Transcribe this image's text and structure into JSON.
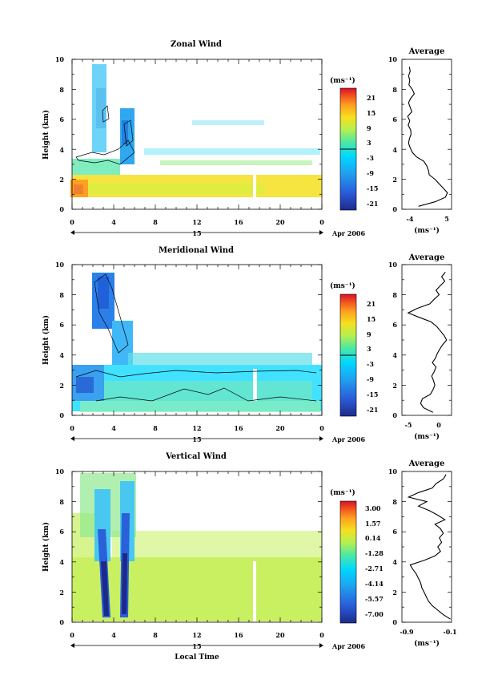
{
  "figure": {
    "date_label": "Apr 2006",
    "day_label": "15",
    "x_title": "Local Time",
    "unit_label": "(ms⁻¹)",
    "avg_title": "Average",
    "y_title": "Height (km)"
  },
  "chart_data": [
    {
      "type": "heatmap",
      "title": "Zonal Wind",
      "xlabel": "",
      "ylabel": "Height (km)",
      "x_ticks": [
        "0",
        "4",
        "8",
        "12",
        "16",
        "20",
        "0"
      ],
      "y_ticks": [
        "0",
        "2",
        "4",
        "6",
        "8",
        "10"
      ],
      "xlim": [
        0,
        24
      ],
      "ylim": [
        0,
        10
      ],
      "colorbar": {
        "label": "(ms⁻¹)",
        "ticks": [
          "21",
          "15",
          "9",
          "3",
          "-3",
          "-9",
          "-15",
          "-21"
        ],
        "range": [
          -24,
          24
        ],
        "zero_line": true
      },
      "colors": {
        "low": "#1d2a8a",
        "mid": "#00d8ff",
        "high": "#e31a1c"
      },
      "regions": [
        {
          "desc": "westerly low layer",
          "x": [
            0,
            24
          ],
          "y": [
            0.7,
            2.6
          ],
          "value": 10
        },
        {
          "desc": "easterly upper plume",
          "x": [
            0,
            6
          ],
          "y": [
            2.6,
            9.6
          ],
          "value": -5
        },
        {
          "desc": "light upper layers",
          "x": [
            6,
            24
          ],
          "y": [
            3,
            6.4
          ],
          "value": -2
        }
      ],
      "average_profile": {
        "title": "Average",
        "xlabel": "(ms⁻¹)",
        "x_ticks": [
          "-4",
          "5"
        ],
        "xlim": [
          -5,
          7
        ],
        "heights": [
          0.2,
          0.5,
          0.8,
          1.1,
          1.4,
          1.7,
          2.0,
          2.3,
          2.6,
          2.9,
          3.2,
          3.5,
          3.8,
          4.1,
          4.4,
          4.7,
          5.0,
          5.3,
          5.6,
          5.9,
          6.2,
          6.5,
          6.8,
          7.1,
          7.4,
          7.7,
          8.0,
          8.3,
          8.6,
          8.9,
          9.2,
          9.5
        ],
        "values": [
          -1,
          3,
          5.5,
          6,
          5,
          4,
          3,
          1.6,
          1.4,
          1.0,
          0.3,
          -1.5,
          -2.5,
          -3.0,
          -3.4,
          -3.2,
          -2.8,
          -2.9,
          -3.5,
          -3.1,
          -3.6,
          -2.6,
          -3.0,
          -3.4,
          -2.9,
          -2.0,
          -2.5,
          -3.3,
          -3.1,
          -3.4,
          -3.0,
          -3.2
        ]
      }
    },
    {
      "type": "heatmap",
      "title": "Meridional Wind",
      "xlabel": "",
      "ylabel": "Height (km)",
      "x_ticks": [
        "0",
        "4",
        "8",
        "12",
        "16",
        "20",
        "0"
      ],
      "y_ticks": [
        "0",
        "2",
        "4",
        "6",
        "8",
        "10"
      ],
      "xlim": [
        0,
        24
      ],
      "ylim": [
        0,
        10
      ],
      "colorbar": {
        "label": "(ms⁻¹)",
        "ticks": [
          "21",
          "15",
          "9",
          "3",
          "-3",
          "-9",
          "-15",
          "-21"
        ],
        "range": [
          -24,
          24
        ],
        "zero_line": true
      },
      "colors": {
        "low": "#1d2a8a",
        "mid": "#00d8ff",
        "high": "#e31a1c"
      },
      "regions": [
        {
          "desc": "southerly low layer",
          "x": [
            0,
            24
          ],
          "y": [
            0.3,
            3.4
          ],
          "value": -3
        },
        {
          "desc": "northerly upper plume",
          "x": [
            1,
            6
          ],
          "y": [
            3.4,
            9.5
          ],
          "value": -7
        }
      ],
      "average_profile": {
        "title": "Average",
        "xlabel": "(ms⁻¹)",
        "x_ticks": [
          "-5",
          "0"
        ],
        "xlim": [
          -6,
          2
        ],
        "heights": [
          0.2,
          0.5,
          0.8,
          1.1,
          1.4,
          1.7,
          2.0,
          2.3,
          2.6,
          2.9,
          3.2,
          3.5,
          3.8,
          4.1,
          4.4,
          4.7,
          5.0,
          5.3,
          5.6,
          5.9,
          6.2,
          6.5,
          6.8,
          7.1,
          7.4,
          7.7,
          8.0,
          8.3,
          8.6,
          8.9,
          9.2,
          9.5
        ],
        "values": [
          -1,
          -2.5,
          -3.0,
          -2.7,
          -1.4,
          -1.0,
          -0.7,
          -0.9,
          -1.2,
          -0.8,
          -0.5,
          -1.1,
          -0.6,
          -0.3,
          0.1,
          0.6,
          1.2,
          0.8,
          0.2,
          -0.4,
          -1.3,
          -3.2,
          -5.0,
          -3.5,
          -1.5,
          -0.8,
          0.0,
          -0.5,
          0.2,
          0.9,
          0.4,
          1.0
        ]
      }
    },
    {
      "type": "heatmap",
      "title": "Vertical Wind",
      "xlabel": "Local Time",
      "ylabel": "Height (km)",
      "x_ticks": [
        "0",
        "4",
        "8",
        "12",
        "16",
        "20",
        "0"
      ],
      "y_ticks": [
        "0",
        "2",
        "4",
        "6",
        "8",
        "10"
      ],
      "xlim": [
        0,
        24
      ],
      "ylim": [
        0,
        10
      ],
      "colorbar": {
        "label": "(ms⁻¹)",
        "ticks": [
          "3.00",
          "1.57",
          "0.14",
          "-1.28",
          "-2.71",
          "-4.14",
          "-5.57",
          "-7.00"
        ],
        "range": [
          -8.43,
          4.43
        ],
        "zero_line": false
      },
      "colors": {
        "low": "#1d2a8a",
        "mid": "#00d8ff",
        "high": "#e31a1c"
      },
      "regions": [
        {
          "desc": "weak lower layer",
          "x": [
            0,
            24
          ],
          "y": [
            0,
            4.2
          ],
          "value": 0.3
        },
        {
          "desc": "downdraft cores",
          "x": [
            3.4,
            5.6
          ],
          "y": [
            0.3,
            6
          ],
          "value": -6.5
        },
        {
          "desc": "mixed upper plume",
          "x": [
            1,
            7
          ],
          "y": [
            4.2,
            10
          ],
          "value": -0.8
        }
      ],
      "average_profile": {
        "title": "Average",
        "xlabel": "(ms⁻¹)",
        "x_ticks": [
          "-0.9",
          "-0.1"
        ],
        "xlim": [
          -1.0,
          -0.1
        ],
        "heights": [
          0.2,
          0.5,
          0.8,
          1.1,
          1.4,
          1.7,
          2.0,
          2.3,
          2.6,
          2.9,
          3.2,
          3.5,
          3.8,
          4.1,
          4.4,
          4.7,
          5.0,
          5.3,
          5.6,
          5.9,
          6.2,
          6.5,
          6.8,
          7.1,
          7.4,
          7.7,
          8.0,
          8.3,
          8.6,
          8.9,
          9.2,
          9.5,
          9.8
        ],
        "values": [
          -0.12,
          -0.25,
          -0.35,
          -0.45,
          -0.52,
          -0.56,
          -0.6,
          -0.64,
          -0.66,
          -0.7,
          -0.74,
          -0.8,
          -0.85,
          -0.6,
          -0.4,
          -0.3,
          -0.35,
          -0.28,
          -0.32,
          -0.25,
          -0.3,
          -0.4,
          -0.22,
          -0.35,
          -0.5,
          -0.7,
          -0.55,
          -0.88,
          -0.7,
          -0.45,
          -0.38,
          -0.25,
          -0.2
        ]
      }
    }
  ]
}
